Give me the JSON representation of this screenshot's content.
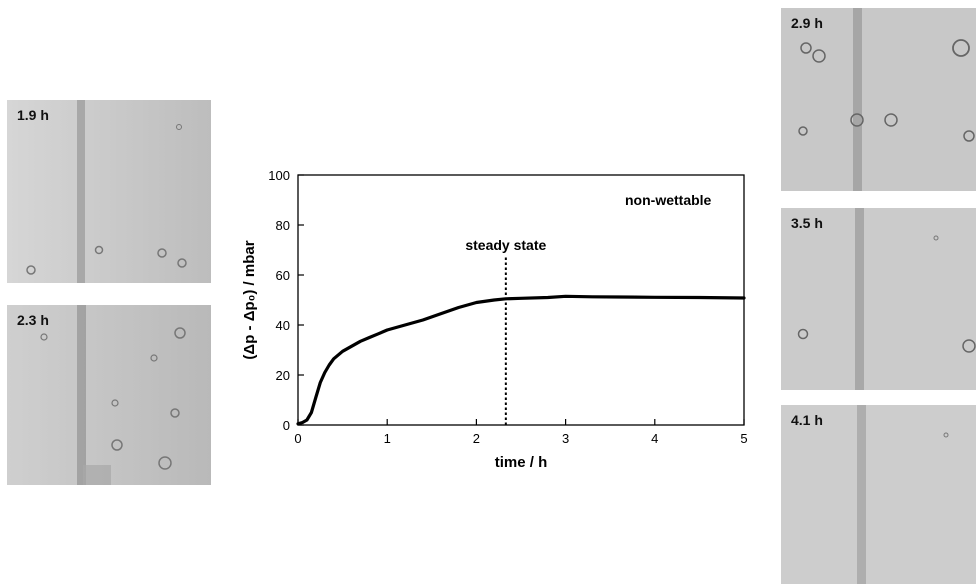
{
  "photos": [
    {
      "id": "photo-1-9h",
      "label": "1.9 h"
    },
    {
      "id": "photo-2-3h",
      "label": "2.3 h"
    },
    {
      "id": "photo-2-9h",
      "label": "2.9 h"
    },
    {
      "id": "photo-3-5h",
      "label": "3.5 h"
    },
    {
      "id": "photo-4-1h",
      "label": "4.1 h"
    }
  ],
  "chart_data": {
    "type": "line",
    "xlabel": "time / h",
    "ylabel": "(Δp - Δp₀) / mbar",
    "xlim": [
      0,
      5
    ],
    "ylim": [
      0,
      100
    ],
    "xticks": [
      0,
      1,
      2,
      3,
      4,
      5
    ],
    "yticks": [
      0,
      20,
      40,
      60,
      80,
      100
    ],
    "grid": false,
    "annotations": [
      {
        "text": "non-wettable",
        "type": "label"
      },
      {
        "text": "steady state",
        "type": "vline",
        "x": 2.33
      }
    ],
    "series": [
      {
        "x": [
          0,
          0.05,
          0.1,
          0.15,
          0.2,
          0.25,
          0.3,
          0.35,
          0.4,
          0.5,
          0.6,
          0.7,
          0.8,
          0.9,
          1.0,
          1.2,
          1.4,
          1.6,
          1.8,
          2.0,
          2.2,
          2.33,
          2.5,
          2.8,
          3.0,
          3.3,
          3.6,
          4.0,
          4.5,
          5.0
        ],
        "y": [
          0.5,
          1,
          2,
          5,
          11,
          17,
          21,
          24,
          26.5,
          29.5,
          31.5,
          33.5,
          35,
          36.5,
          38,
          40,
          42,
          44.5,
          47,
          49,
          50,
          50.5,
          50.7,
          51,
          51.5,
          51.3,
          51.2,
          51.1,
          51,
          50.8
        ]
      }
    ]
  }
}
